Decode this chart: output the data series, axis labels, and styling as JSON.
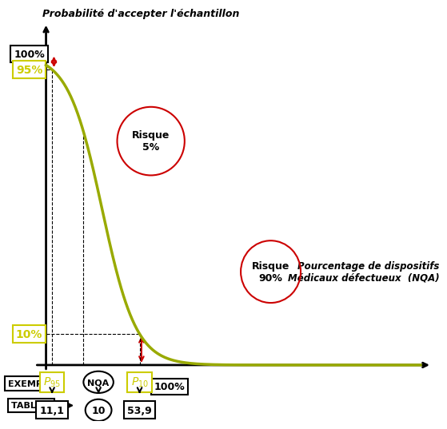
{
  "title_y": "Probabilité d'accepter l'échantillon",
  "title_x": "Pourcentage de dispositifs\nMédicaux défectueux  (NQA)",
  "curve_color": "#99aa00",
  "bg_color": "#ffffff",
  "p95_label": "Pₕ₅",
  "p10_label": "P₁₀",
  "nqa_label": "NQA",
  "val_p95": "11,1",
  "val_nqa": "10",
  "val_p10": "53,9",
  "label_95": "95%",
  "label_10": "10%",
  "label_100_y": "100%",
  "label_100_x": "100%",
  "risque5_label": "Risque\n5%",
  "risque90_label": "Risque\n90%",
  "exemple_label": "EXEMPLE",
  "table_label": "TABLE 3",
  "yellow_color": "#cccc00",
  "red_color": "#cc0000"
}
